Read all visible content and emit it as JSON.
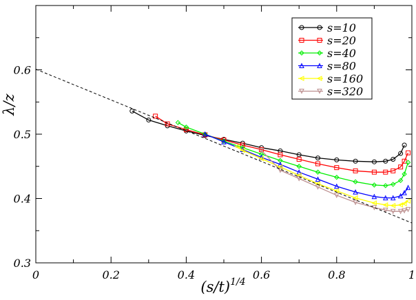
{
  "chart_data": {
    "type": "line",
    "title": "",
    "xlabel": "(s/t)",
    "xlabel_sup": "1/4",
    "ylabel": "λ/z",
    "xlim": [
      0,
      1
    ],
    "ylim": [
      0.3,
      0.7
    ],
    "x_ticks": [
      0,
      0.2,
      0.4,
      0.6,
      0.8,
      1
    ],
    "x_tick_labels": [
      "0",
      "0.2",
      "0.4",
      "0.6",
      "0.8",
      "1"
    ],
    "y_ticks": [
      0.3,
      0.4,
      0.5,
      0.6
    ],
    "y_tick_labels": [
      "0.3",
      "0.4",
      "0.5",
      "0.6"
    ],
    "grid": false,
    "legend_position": "top-right",
    "reference_line": {
      "style": "dashed",
      "color": "#000000",
      "x": [
        0,
        1
      ],
      "y": [
        0.601,
        0.362
      ]
    },
    "series": [
      {
        "name": "s=10",
        "color": "#000000",
        "marker": "circle",
        "x": [
          0.256,
          0.3,
          0.35,
          0.4,
          0.45,
          0.5,
          0.55,
          0.6,
          0.65,
          0.7,
          0.75,
          0.8,
          0.85,
          0.9,
          0.93,
          0.95,
          0.97,
          0.98
        ],
        "y": [
          0.536,
          0.522,
          0.513,
          0.505,
          0.498,
          0.492,
          0.486,
          0.479,
          0.474,
          0.468,
          0.463,
          0.46,
          0.458,
          0.457,
          0.458,
          0.461,
          0.47,
          0.483
        ]
      },
      {
        "name": "s=20",
        "color": "#ff0000",
        "marker": "square",
        "x": [
          0.318,
          0.35,
          0.4,
          0.45,
          0.5,
          0.55,
          0.6,
          0.65,
          0.7,
          0.75,
          0.8,
          0.85,
          0.9,
          0.93,
          0.95,
          0.97,
          0.98,
          0.99
        ],
        "y": [
          0.528,
          0.516,
          0.507,
          0.499,
          0.491,
          0.483,
          0.476,
          0.468,
          0.461,
          0.454,
          0.448,
          0.443,
          0.441,
          0.441,
          0.443,
          0.449,
          0.458,
          0.471
        ]
      },
      {
        "name": "s=40",
        "color": "#00ee00",
        "marker": "diamond",
        "x": [
          0.378,
          0.4,
          0.45,
          0.5,
          0.55,
          0.6,
          0.65,
          0.7,
          0.75,
          0.8,
          0.85,
          0.9,
          0.93,
          0.95,
          0.97,
          0.98,
          0.99
        ],
        "y": [
          0.518,
          0.511,
          0.5,
          0.489,
          0.479,
          0.469,
          0.459,
          0.45,
          0.441,
          0.433,
          0.426,
          0.421,
          0.42,
          0.422,
          0.428,
          0.438,
          0.456
        ]
      },
      {
        "name": "s=80",
        "color": "#0000ff",
        "marker": "triangle-up",
        "x": [
          0.45,
          0.5,
          0.55,
          0.6,
          0.65,
          0.7,
          0.75,
          0.8,
          0.85,
          0.9,
          0.93,
          0.95,
          0.97,
          0.98,
          0.99
        ],
        "y": [
          0.5,
          0.488,
          0.476,
          0.464,
          0.453,
          0.441,
          0.43,
          0.419,
          0.41,
          0.403,
          0.401,
          0.401,
          0.404,
          0.409,
          0.417
        ]
      },
      {
        "name": "s=160",
        "color": "#ffff00",
        "marker": "triangle-left",
        "x": [
          0.535,
          0.55,
          0.6,
          0.65,
          0.7,
          0.75,
          0.8,
          0.85,
          0.9,
          0.93,
          0.95,
          0.97,
          0.98,
          0.99
        ],
        "y": [
          0.481,
          0.475,
          0.462,
          0.449,
          0.436,
          0.423,
          0.412,
          0.401,
          0.393,
          0.39,
          0.389,
          0.39,
          0.392,
          0.396
        ]
      },
      {
        "name": "s=320",
        "color": "#bc8f8f",
        "marker": "triangle-down",
        "x": [
          0.6,
          0.65,
          0.7,
          0.75,
          0.8,
          0.85,
          0.9,
          0.93,
          0.95,
          0.97,
          0.98,
          0.99
        ],
        "y": [
          0.475,
          0.444,
          0.431,
          0.418,
          0.405,
          0.394,
          0.386,
          0.382,
          0.38,
          0.38,
          0.381,
          0.383
        ]
      }
    ]
  }
}
